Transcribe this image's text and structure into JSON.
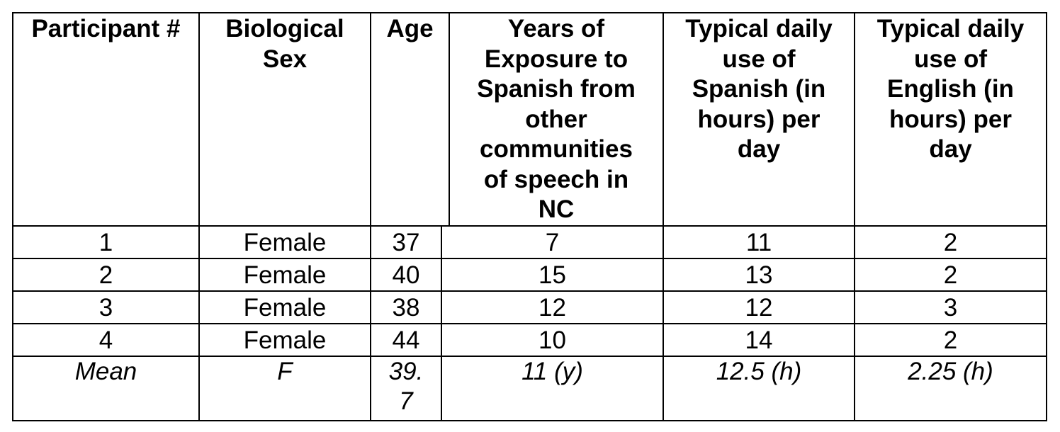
{
  "table": {
    "headers": [
      "Participant #",
      "Biological Sex",
      "Age",
      "Years of Exposure to Spanish from other communities of speech in NC",
      "Typical daily use of Spanish (in hours) per day",
      "Typical daily use of English (in hours) per day"
    ],
    "header_lines": [
      [
        "Participant #"
      ],
      [
        "Biological",
        "Sex"
      ],
      [
        "Age"
      ],
      [
        "Years of",
        "Exposure to",
        "Spanish from",
        "other",
        "communities",
        "of speech in",
        "NC"
      ],
      [
        "Typical daily",
        "use of",
        "Spanish (in",
        "hours) per",
        "day"
      ],
      [
        "Typical daily",
        "use of",
        "English (in",
        "hours) per",
        "day"
      ]
    ],
    "rows": [
      [
        "1",
        "Female",
        "37",
        "7",
        "11",
        "2"
      ],
      [
        "2",
        "Female",
        "40",
        "15",
        "13",
        "2"
      ],
      [
        "3",
        "Female",
        "38",
        "12",
        "12",
        "3"
      ],
      [
        "4",
        "Female",
        "44",
        "10",
        "14",
        "2"
      ]
    ],
    "mean_row": [
      "Mean",
      "F",
      "39.7",
      "11 (y)",
      "12.5 (h)",
      "2.25 (h)"
    ],
    "mean_age_lines": [
      "39.",
      "7"
    ]
  }
}
